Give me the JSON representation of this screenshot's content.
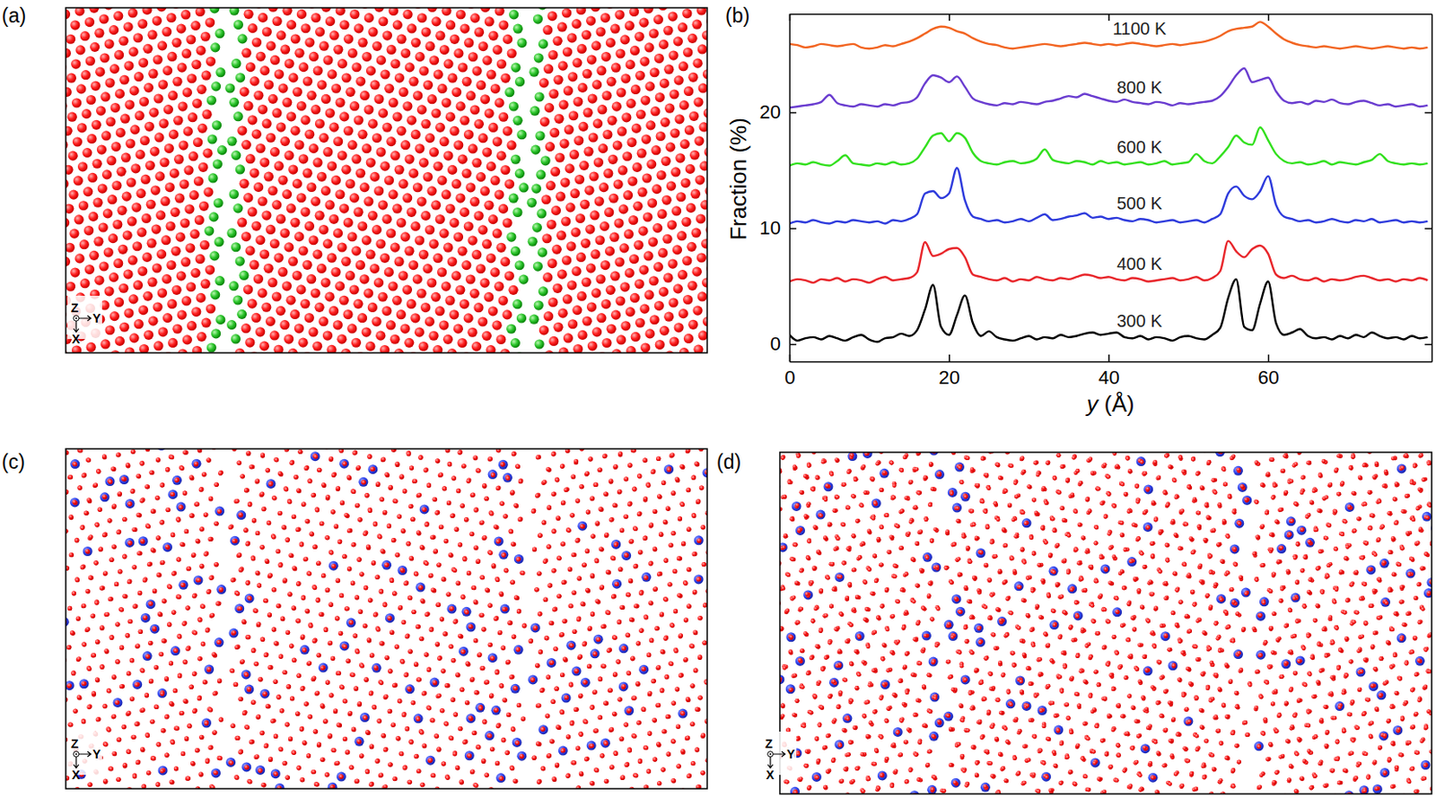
{
  "panels": [
    {
      "label": "(a)",
      "axis_labels": [
        "Z",
        "Y",
        "X"
      ]
    },
    {
      "label": "(b)"
    },
    {
      "label": "(c)",
      "axis_labels": [
        "Z",
        "Y",
        "X"
      ]
    },
    {
      "label": "(d)",
      "axis_labels": [
        "Z",
        "Y",
        "X"
      ]
    }
  ],
  "chart_data": {
    "type": "line",
    "xlabel": "y (Å)",
    "ylabel": "Fraction (%)",
    "xlim": [
      0,
      80.5
    ],
    "ylim": [
      -1.5,
      28.5
    ],
    "xticks": [
      0,
      20,
      40,
      60
    ],
    "yticks": [
      0,
      10,
      20
    ],
    "x": [
      0,
      1,
      2,
      3,
      4,
      5,
      6,
      7,
      8,
      9,
      10,
      11,
      12,
      13,
      14,
      15,
      16,
      17,
      18,
      19,
      20,
      21,
      22,
      23,
      24,
      25,
      26,
      27,
      28,
      29,
      30,
      31,
      32,
      33,
      34,
      35,
      36,
      37,
      38,
      39,
      40,
      41,
      42,
      43,
      44,
      45,
      46,
      47,
      48,
      49,
      50,
      51,
      52,
      53,
      54,
      55,
      56,
      57,
      58,
      59,
      60,
      61,
      62,
      63,
      64,
      65,
      66,
      67,
      68,
      69,
      70,
      71,
      72,
      73,
      74,
      75,
      76,
      77,
      78,
      79,
      80
    ],
    "series": [
      {
        "name": "300 K",
        "color": "#000000",
        "values": [
          0.8,
          0.3,
          0.5,
          0.6,
          0.4,
          0.7,
          0.5,
          0.3,
          0.6,
          0.8,
          0.4,
          0.2,
          0.5,
          0.6,
          0.9,
          0.7,
          1.2,
          3.0,
          5.1,
          1.5,
          0.8,
          2.5,
          4.2,
          1.8,
          0.7,
          1.1,
          0.6,
          0.4,
          0.3,
          0.5,
          0.7,
          0.4,
          0.6,
          0.5,
          0.8,
          0.6,
          0.7,
          0.9,
          1.0,
          0.8,
          0.9,
          1.0,
          0.6,
          0.5,
          0.7,
          0.4,
          0.6,
          0.5,
          0.3,
          0.6,
          0.7,
          0.5,
          0.4,
          0.8,
          1.4,
          4.0,
          5.6,
          1.5,
          1.2,
          3.5,
          5.4,
          1.8,
          0.8,
          1.0,
          1.3,
          0.7,
          0.5,
          0.6,
          0.4,
          0.7,
          0.5,
          0.8,
          0.6,
          1.0,
          0.7,
          0.5,
          0.6,
          0.4,
          0.7,
          0.5,
          0.6
        ]
      },
      {
        "name": "400 K",
        "color": "#e8262b",
        "values": [
          5.4,
          5.6,
          5.5,
          5.3,
          5.6,
          5.5,
          5.7,
          5.4,
          5.6,
          5.5,
          5.3,
          5.6,
          5.8,
          5.5,
          5.6,
          5.7,
          6.2,
          8.8,
          7.6,
          7.8,
          8.2,
          8.3,
          7.5,
          6.0,
          5.8,
          5.6,
          5.5,
          5.7,
          5.4,
          5.6,
          5.5,
          5.8,
          5.6,
          5.5,
          5.7,
          5.6,
          5.8,
          6.0,
          5.9,
          5.7,
          5.8,
          5.6,
          5.5,
          5.7,
          5.6,
          5.4,
          5.5,
          5.6,
          5.7,
          5.5,
          5.6,
          5.8,
          5.5,
          5.7,
          6.3,
          8.9,
          8.0,
          7.5,
          8.2,
          8.5,
          7.8,
          6.0,
          5.7,
          5.9,
          5.6,
          5.5,
          5.7,
          5.4,
          5.6,
          5.5,
          5.6,
          5.8,
          5.9,
          5.7,
          5.5,
          5.6,
          5.4,
          5.6,
          5.5,
          5.7,
          5.5
        ]
      },
      {
        "name": "500 K",
        "color": "#2e3bdc",
        "values": [
          10.4,
          10.6,
          10.5,
          10.7,
          10.5,
          10.4,
          10.6,
          10.5,
          10.7,
          10.6,
          10.5,
          10.6,
          10.4,
          10.7,
          10.6,
          10.8,
          11.2,
          13.0,
          13.2,
          12.6,
          13.0,
          15.2,
          12.4,
          11.0,
          10.8,
          10.6,
          10.7,
          10.5,
          10.6,
          10.8,
          10.6,
          10.9,
          11.2,
          10.7,
          10.8,
          11.0,
          11.1,
          11.3,
          10.9,
          11.0,
          10.8,
          10.9,
          10.7,
          10.6,
          10.8,
          10.7,
          10.5,
          10.6,
          10.7,
          10.5,
          10.6,
          10.7,
          10.5,
          10.8,
          11.2,
          13.0,
          13.6,
          12.8,
          12.5,
          13.2,
          14.5,
          12.0,
          11.0,
          10.8,
          10.6,
          10.7,
          10.5,
          10.6,
          10.8,
          10.6,
          10.5,
          10.7,
          10.6,
          10.8,
          10.5,
          10.6,
          10.7,
          10.5,
          10.6,
          10.5,
          10.6
        ]
      },
      {
        "name": "600 K",
        "color": "#33e01f",
        "values": [
          15.4,
          15.6,
          15.5,
          15.7,
          15.5,
          15.4,
          15.8,
          16.3,
          15.6,
          15.5,
          15.4,
          15.6,
          15.5,
          15.7,
          15.5,
          15.6,
          16.0,
          17.0,
          18.0,
          18.2,
          17.5,
          18.2,
          17.8,
          16.5,
          15.8,
          15.6,
          15.5,
          15.7,
          15.8,
          15.6,
          15.7,
          16.0,
          16.8,
          15.9,
          15.7,
          15.6,
          15.8,
          15.7,
          15.5,
          15.8,
          15.6,
          15.7,
          15.5,
          15.6,
          15.7,
          15.5,
          15.6,
          15.8,
          15.5,
          15.6,
          15.7,
          16.4,
          15.8,
          15.6,
          16.2,
          17.0,
          18.0,
          17.4,
          17.2,
          18.7,
          17.6,
          16.4,
          15.8,
          15.6,
          15.7,
          15.5,
          15.6,
          15.8,
          15.5,
          15.7,
          15.6,
          15.5,
          15.7,
          15.9,
          16.4,
          15.8,
          15.6,
          15.5,
          15.6,
          15.5,
          15.6
        ]
      },
      {
        "name": "800 K",
        "color": "#6a3dd0",
        "values": [
          20.4,
          20.5,
          20.6,
          20.7,
          20.9,
          21.5,
          20.8,
          20.6,
          20.5,
          20.7,
          20.6,
          20.5,
          20.7,
          20.6,
          20.8,
          20.9,
          21.3,
          22.5,
          23.2,
          23.0,
          22.6,
          23.1,
          22.2,
          21.2,
          20.9,
          20.7,
          20.6,
          20.8,
          20.7,
          20.9,
          20.8,
          20.7,
          20.9,
          21.0,
          21.2,
          21.4,
          21.3,
          21.6,
          21.4,
          21.2,
          21.0,
          20.9,
          21.1,
          20.9,
          20.8,
          20.7,
          20.9,
          20.8,
          20.6,
          20.8,
          20.7,
          20.8,
          20.9,
          21.0,
          21.4,
          22.2,
          23.2,
          23.8,
          22.6,
          22.8,
          23.0,
          21.8,
          21.0,
          20.8,
          20.9,
          20.7,
          21.0,
          20.9,
          21.1,
          20.8,
          20.7,
          20.9,
          21.0,
          20.8,
          20.6,
          20.7,
          20.5,
          20.6,
          20.7,
          20.5,
          20.6
        ]
      },
      {
        "name": "1100 K",
        "color": "#f26522",
        "values": [
          25.9,
          25.8,
          25.6,
          25.7,
          25.9,
          25.8,
          25.7,
          25.8,
          25.9,
          25.6,
          25.5,
          25.6,
          25.8,
          25.7,
          25.9,
          26.1,
          26.4,
          26.8,
          27.2,
          27.4,
          27.3,
          27.0,
          26.8,
          26.4,
          26.1,
          25.9,
          25.8,
          25.6,
          25.5,
          25.6,
          25.7,
          25.8,
          25.9,
          25.8,
          25.7,
          25.8,
          25.9,
          26.0,
          25.9,
          25.8,
          25.9,
          25.8,
          25.9,
          26.0,
          25.9,
          25.8,
          25.7,
          25.8,
          25.9,
          25.8,
          25.9,
          26.0,
          26.1,
          26.3,
          26.6,
          27.0,
          27.2,
          27.3,
          27.4,
          27.8,
          27.4,
          26.8,
          26.3,
          26.0,
          25.8,
          25.7,
          25.6,
          25.7,
          25.6,
          25.5,
          25.6,
          25.7,
          25.6,
          25.5,
          25.6,
          25.7,
          25.6,
          25.5,
          25.6,
          25.5,
          25.6
        ]
      }
    ]
  }
}
